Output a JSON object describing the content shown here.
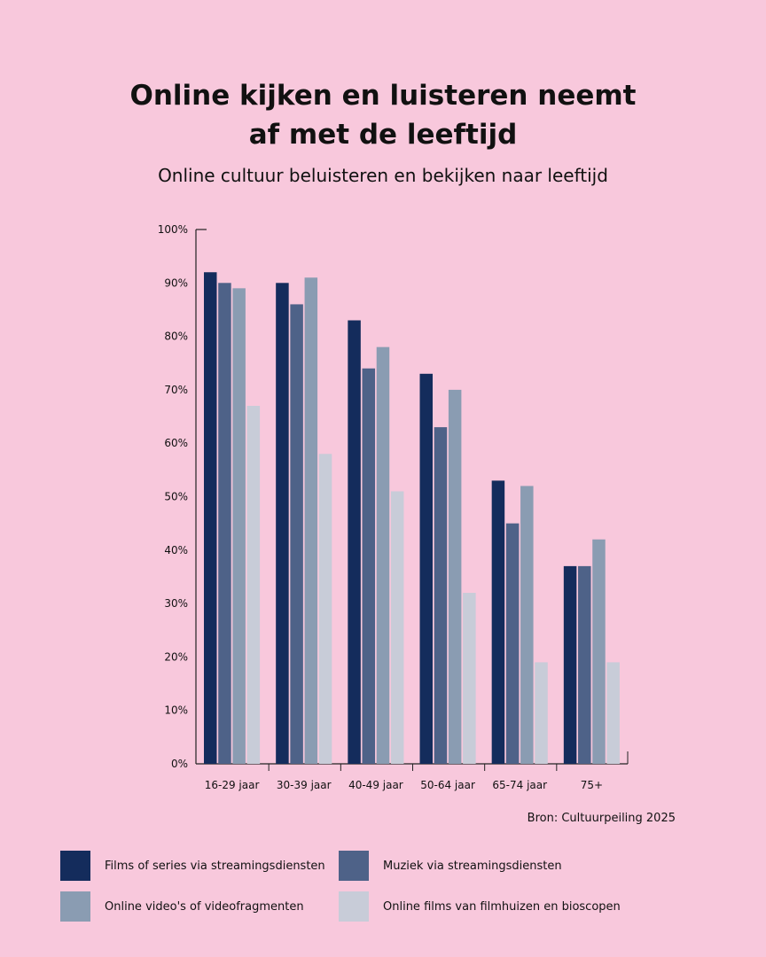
{
  "chart_data": {
    "type": "bar",
    "title": "Online kijken en luisteren neemt af met de leeftijd",
    "subtitle": "Online cultuur beluisteren en bekijken naar leeftijd",
    "categories": [
      "16-29 jaar",
      "30-39 jaar",
      "40-49 jaar",
      "50-64 jaar",
      "65-74 jaar",
      "75+"
    ],
    "yticks": [
      "0%",
      "10%",
      "20%",
      "30%",
      "40%",
      "50%",
      "60%",
      "70%",
      "80%",
      "90%",
      "100%"
    ],
    "ylim": [
      0,
      100
    ],
    "grid": false,
    "legend_position": "bottom",
    "series": [
      {
        "name": "Films of series via streamingsdiensten",
        "color": "#142c5c",
        "values": [
          92,
          90,
          83,
          73,
          53,
          37
        ]
      },
      {
        "name": "Muziek via streamingsdiensten",
        "color": "#4e6288",
        "values": [
          90,
          86,
          74,
          63,
          45,
          37
        ]
      },
      {
        "name": "Online video's of videofragmenten",
        "color": "#8a9cb2",
        "values": [
          89,
          91,
          78,
          70,
          52,
          42
        ]
      },
      {
        "name": "Online films van filmhuizen en bioscopen",
        "color": "#c8ccd8",
        "values": [
          67,
          58,
          51,
          32,
          19,
          19
        ]
      }
    ],
    "source": "Bron: Cultuurpeiling 2025"
  }
}
